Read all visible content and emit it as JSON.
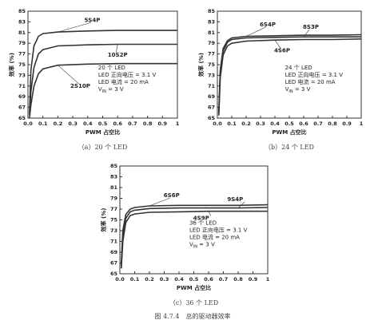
{
  "chart_data": [
    {
      "type": "line",
      "caption": "（a）20 个 LED",
      "xlabel": "PWM 占空比",
      "ylabel": "效率 (%)",
      "notes": [
        "20 个 LED",
        "LED 正向电压 = 3.1 V",
        "LED 电流 = 20 mA"
      ],
      "vin_note": [
        "V",
        "IN",
        " = 3 V"
      ],
      "x": [
        0.01,
        0.02,
        0.04,
        0.07,
        0.1,
        0.2,
        0.4,
        0.6,
        0.8,
        1
      ],
      "series": [
        {
          "name": "5S4P",
          "color": "#333333",
          "values": [
            66,
            74,
            78.5,
            80.3,
            80.8,
            81.1,
            81.3,
            81.4,
            81.4,
            81.4
          ]
        },
        {
          "name": "10S2P",
          "color": "#333333",
          "values": [
            65.5,
            70,
            74.5,
            77,
            77.8,
            78.5,
            78.7,
            78.8,
            78.8,
            78.8
          ]
        },
        {
          "name": "2S10P",
          "color": "#333333",
          "values": [
            65,
            67.5,
            71,
            73.3,
            74.2,
            74.9,
            75.1,
            75.2,
            75.2,
            75.2
          ]
        }
      ],
      "xlim": [
        0,
        1
      ],
      "ylim": [
        65,
        85
      ],
      "xticks": [
        {
          "value": 0,
          "label": "0.0"
        },
        0.1,
        0.2,
        0.3,
        0.4,
        0.5,
        0.6,
        0.7,
        0.8,
        0.9,
        1
      ],
      "yticks": [
        65,
        67,
        69,
        71,
        73,
        75,
        77,
        79,
        81,
        83,
        85
      ]
    },
    {
      "type": "line",
      "caption": "（b）24 个 LED",
      "xlabel": "PWM 占空比",
      "ylabel": "效率 (%)",
      "notes": [
        "24 个 LED",
        "LED 正向电压 = 3.1 V",
        "LED 电流 = 20 mA"
      ],
      "vin_note": [
        "V",
        "IN",
        " = 3 V"
      ],
      "x": [
        0.01,
        0.02,
        0.04,
        0.07,
        0.1,
        0.2,
        0.4,
        0.6,
        0.8,
        1
      ],
      "series": [
        {
          "name": "6S4P",
          "color": "#333333",
          "values": [
            66,
            74,
            78,
            79.5,
            80,
            80.3,
            80.4,
            80.5,
            80.5,
            80.6
          ]
        },
        {
          "name": "8S3P",
          "color": "#333333",
          "values": [
            66,
            73.5,
            77.5,
            79.2,
            79.7,
            80,
            80.1,
            80.2,
            80.2,
            80.2
          ]
        },
        {
          "name": "4S6P",
          "color": "#333333",
          "values": [
            65.5,
            72.5,
            76.8,
            78.5,
            79,
            79.4,
            79.6,
            79.7,
            79.7,
            79.8
          ]
        }
      ],
      "xlim": [
        0,
        1
      ],
      "ylim": [
        65,
        85
      ],
      "xticks": [
        {
          "value": 0,
          "label": "0.0"
        },
        0.1,
        0.2,
        0.3,
        0.4,
        0.5,
        0.6,
        0.7,
        0.8,
        0.9,
        1
      ],
      "yticks": [
        65,
        67,
        69,
        71,
        73,
        75,
        77,
        79,
        81,
        83,
        85
      ]
    },
    {
      "type": "line",
      "caption": "（c）36 个 LED",
      "xlabel": "PWM 占空比",
      "ylabel": "效率 (%)",
      "notes": [
        "36 个 LED",
        "LED 正向电压 = 3.1 V",
        "LED 电流 = 20 mA"
      ],
      "vin_note": [
        "V",
        "IN",
        " = 3 V"
      ],
      "x": [
        0.01,
        0.02,
        0.04,
        0.07,
        0.1,
        0.2,
        0.4,
        0.6,
        0.8,
        1
      ],
      "series": [
        {
          "name": "6S6P",
          "color": "#333333",
          "values": [
            67,
            73,
            76,
            77,
            77.3,
            77.6,
            77.7,
            77.7,
            77.7,
            77.8
          ]
        },
        {
          "name": "9S4P",
          "color": "#333333",
          "values": [
            66.5,
            72,
            75.3,
            76.5,
            76.8,
            77.1,
            77.2,
            77.2,
            77.2,
            77.3
          ]
        },
        {
          "name": "4S9P",
          "color": "#333333",
          "values": [
            66,
            71,
            74.5,
            75.8,
            76.1,
            76.4,
            76.5,
            76.6,
            76.6,
            76.6
          ]
        }
      ],
      "xlim": [
        0,
        1
      ],
      "ylim": [
        65,
        85
      ],
      "xticks": [
        {
          "value": 0,
          "label": "0.0"
        },
        0.1,
        0.2,
        0.3,
        0.4,
        0.5,
        0.6,
        0.7,
        0.8,
        0.9,
        1
      ],
      "yticks": [
        65,
        67,
        69,
        71,
        73,
        75,
        77,
        79,
        81,
        83,
        85
      ]
    }
  ],
  "figure_caption": "图 4.7.4　总的驱动器效率"
}
